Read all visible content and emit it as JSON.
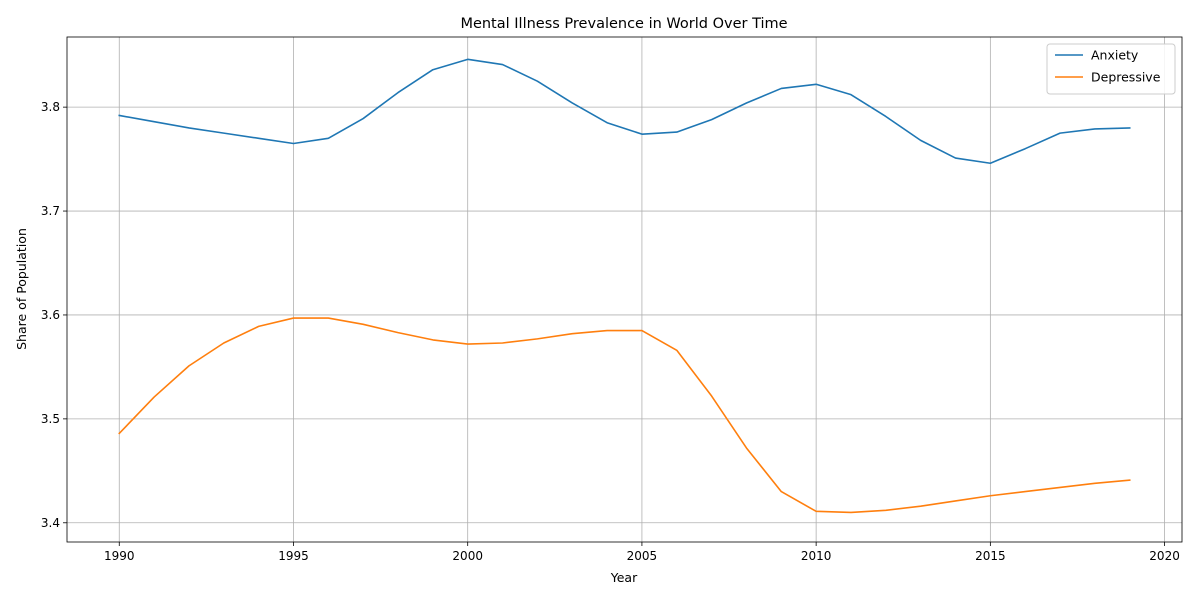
{
  "chart_data": {
    "type": "line",
    "title": "Mental Illness Prevalence in World Over Time",
    "xlabel": "Year",
    "ylabel": "Share of Population",
    "xlim": [
      1988.5,
      2020.5
    ],
    "ylim": [
      3.3815,
      3.8675
    ],
    "xticks": [
      1990,
      1995,
      2000,
      2005,
      2010,
      2015,
      2020
    ],
    "yticks": [
      3.4,
      3.5,
      3.6,
      3.7,
      3.8
    ],
    "xtick_labels": [
      "1990",
      "1995",
      "2000",
      "2005",
      "2010",
      "2015",
      "2020"
    ],
    "ytick_labels": [
      "3.4",
      "3.5",
      "3.6",
      "3.7",
      "3.8"
    ],
    "grid": true,
    "legend": "top-right",
    "x": [
      1990,
      1991,
      1992,
      1993,
      1994,
      1995,
      1996,
      1997,
      1998,
      1999,
      2000,
      2001,
      2002,
      2003,
      2004,
      2005,
      2006,
      2007,
      2008,
      2009,
      2010,
      2011,
      2012,
      2013,
      2014,
      2015,
      2016,
      2017,
      2018,
      2019
    ],
    "series": [
      {
        "name": "Anxiety",
        "color": "#1f77b4",
        "values": [
          3.792,
          3.786,
          3.78,
          3.775,
          3.77,
          3.765,
          3.77,
          3.789,
          3.814,
          3.836,
          3.846,
          3.841,
          3.825,
          3.804,
          3.785,
          3.774,
          3.776,
          3.788,
          3.804,
          3.818,
          3.822,
          3.812,
          3.791,
          3.768,
          3.751,
          3.746,
          3.76,
          3.775,
          3.779,
          3.78
        ]
      },
      {
        "name": "Depressive",
        "color": "#ff7f0e",
        "values": [
          3.486,
          3.521,
          3.551,
          3.573,
          3.589,
          3.597,
          3.597,
          3.591,
          3.583,
          3.576,
          3.572,
          3.573,
          3.577,
          3.582,
          3.585,
          3.585,
          3.566,
          3.522,
          3.472,
          3.43,
          3.411,
          3.41,
          3.412,
          3.416,
          3.421,
          3.426,
          3.43,
          3.434,
          3.438,
          3.441
        ]
      }
    ]
  }
}
